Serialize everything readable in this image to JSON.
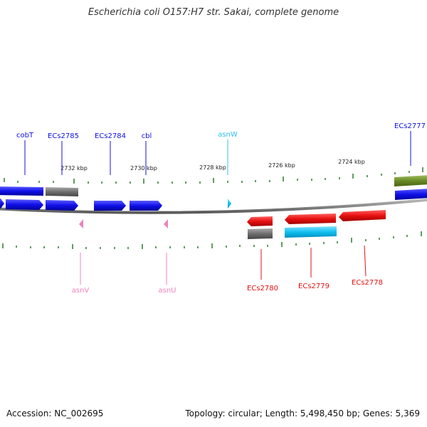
{
  "title": "Escherichia coli O157:H7 str. Sakai, complete genome",
  "footer": {
    "accession": "Accession: NC_002695",
    "stats": "Topology: circular; Length: 5,498,450 bp; Genes: 5,369"
  },
  "ticks": {
    "labels": [
      "2732 kbp",
      "2730 kbp",
      "2728 kbp",
      "2726 kbp",
      "2724 kbp"
    ]
  },
  "features": {
    "cobT": "cobT",
    "ECs2785": "ECs2785",
    "ECs2784": "ECs2784",
    "cbl": "cbl",
    "asnW": "asnW",
    "ECs2777": "ECs2777",
    "asnV": "asnV",
    "asnU": "asnU",
    "ECs2780": "ECs2780",
    "ECs2779": "ECs2779",
    "ECs2778": "ECs2778"
  },
  "colors": {
    "forward_cds": "#1010e8",
    "reverse_cds": "#e81010",
    "gene_gray": "#6e6e6e",
    "rna_cyan": "#10c0f0",
    "trna_pink": "#f080c0",
    "misc_olive": "#6a8a28",
    "tick_green": "#2a7a2a",
    "backbone": "#8a8a8a"
  }
}
